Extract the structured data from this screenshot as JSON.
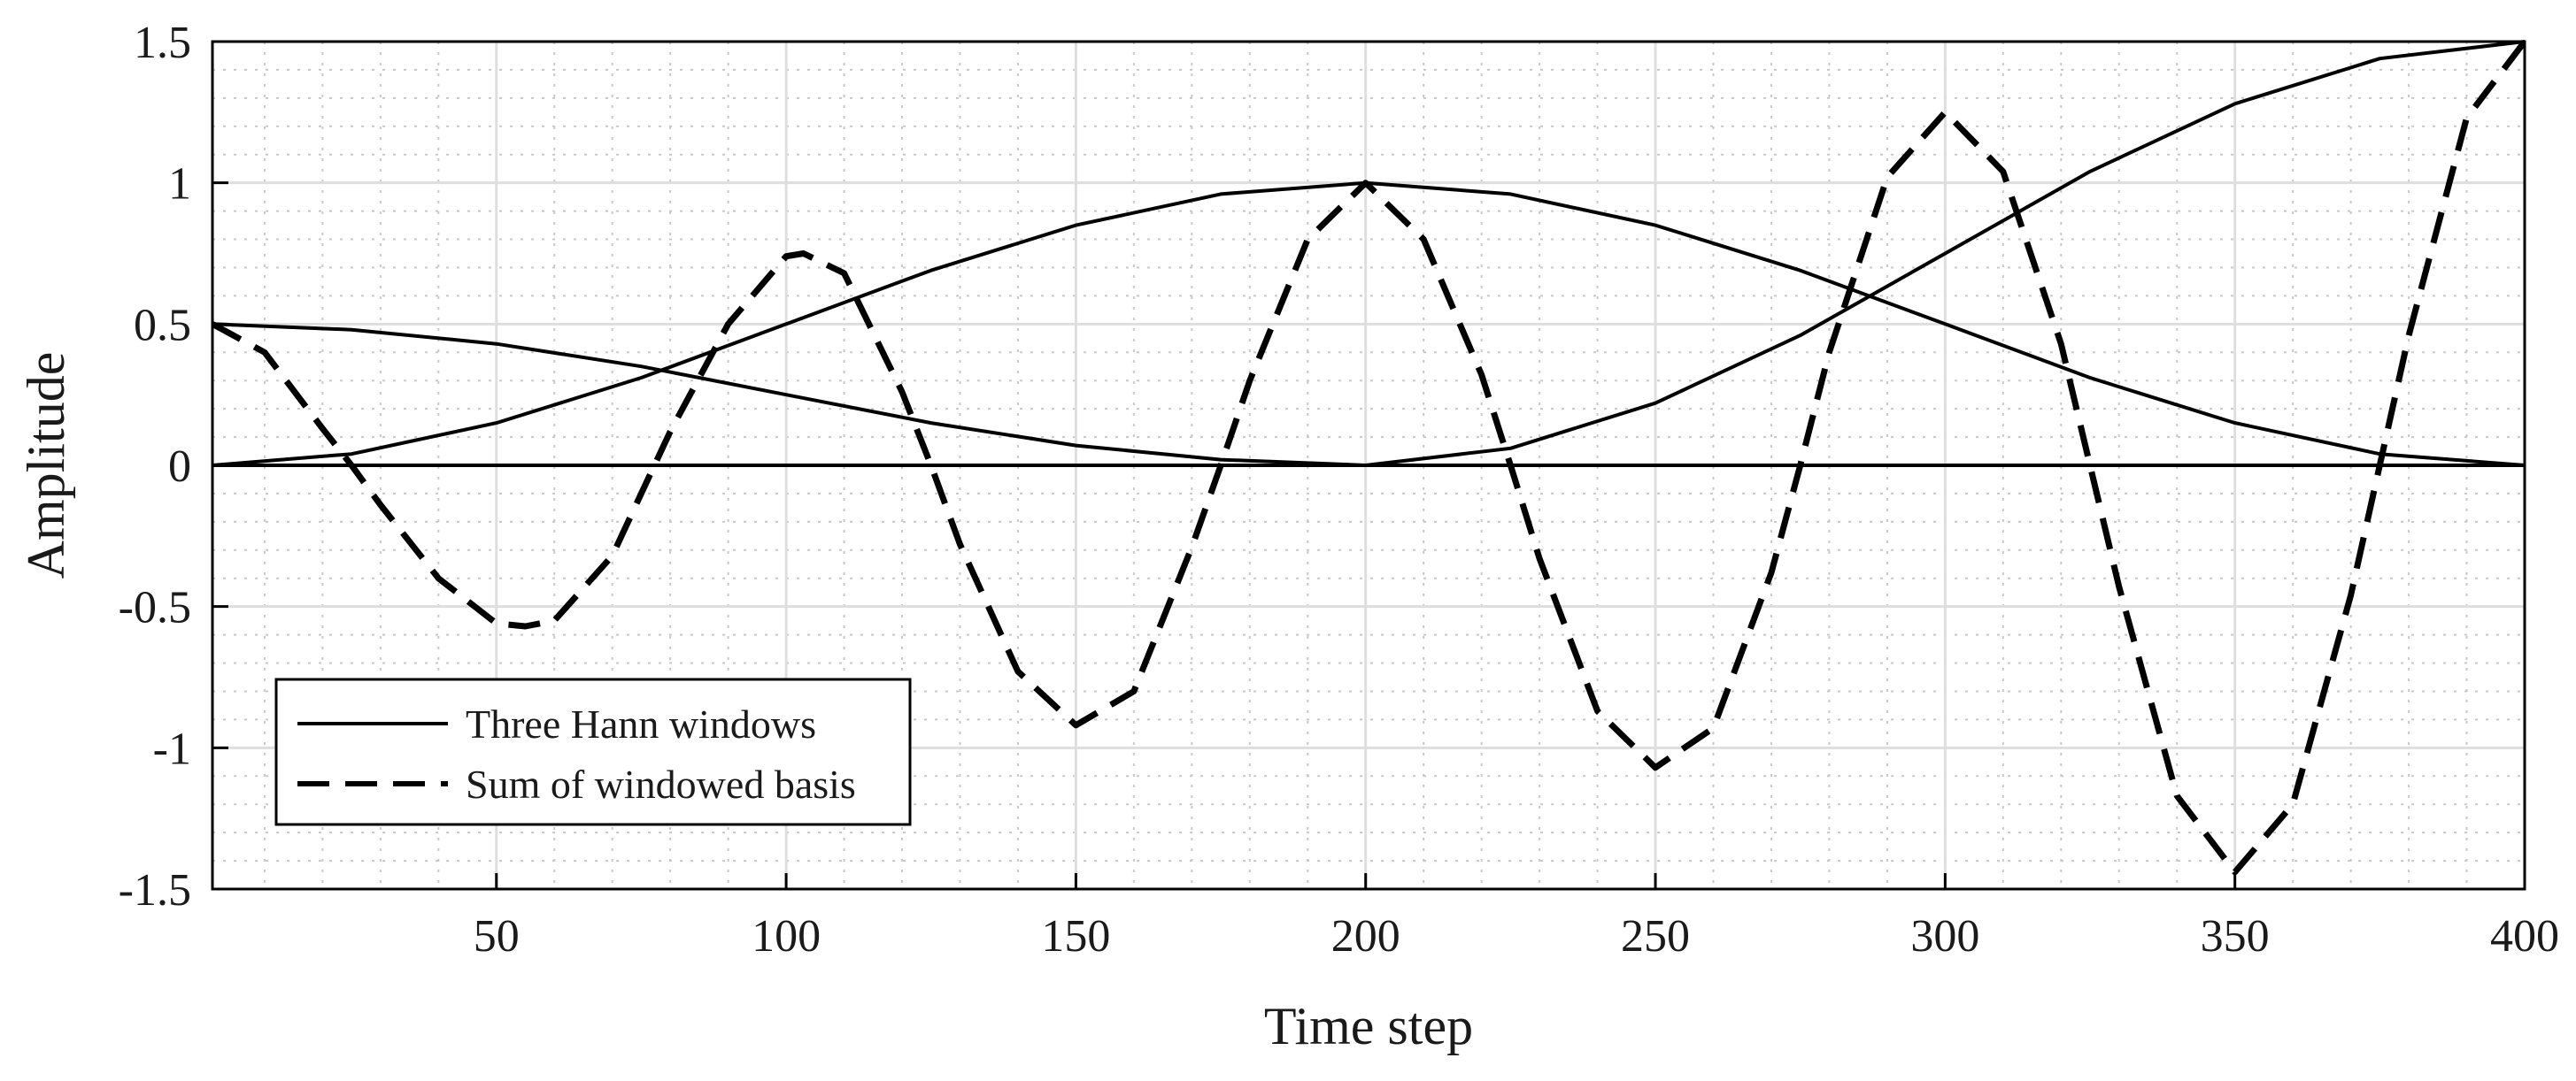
{
  "chart_data": {
    "type": "line",
    "title": "",
    "xlabel": "Time step",
    "ylabel": "Amplitude",
    "xlim": [
      1,
      400
    ],
    "ylim": [
      -1.5,
      1.5
    ],
    "grid": true,
    "minor_grid": true,
    "xticks": [
      50,
      100,
      150,
      200,
      250,
      300,
      350,
      400
    ],
    "yticks": [
      -1.5,
      -1,
      -0.5,
      0,
      0.5,
      1,
      1.5
    ],
    "xtick_labels": [
      "50",
      "100",
      "150",
      "200",
      "250",
      "300",
      "350",
      "400"
    ],
    "ytick_labels": [
      "-1.5",
      "-1",
      "-0.5",
      "0",
      "0.5",
      "1",
      "1.5"
    ],
    "legend_position": "bottom-left",
    "series": [
      {
        "name": "Three Hann windows",
        "style": "solid",
        "color": "#000000",
        "segments": [
          {
            "x": [
              1,
              25,
              50,
              75,
              100,
              125,
              150,
              175,
              200
            ],
            "y": [
              0.5,
              0.48,
              0.43,
              0.35,
              0.25,
              0.15,
              0.07,
              0.02,
              0
            ]
          },
          {
            "x": [
              1,
              25,
              50,
              75,
              100,
              125,
              150,
              175,
              200,
              225,
              250,
              275,
              300,
              325,
              350,
              375,
              400
            ],
            "y": [
              0,
              0.04,
              0.15,
              0.31,
              0.5,
              0.69,
              0.85,
              0.96,
              1,
              0.96,
              0.85,
              0.69,
              0.5,
              0.31,
              0.15,
              0.04,
              0
            ]
          },
          {
            "x": [
              200,
              225,
              250,
              275,
              300,
              325,
              350,
              375,
              400
            ],
            "y": [
              0,
              0.06,
              0.22,
              0.46,
              0.75,
              1.04,
              1.28,
              1.44,
              1.5
            ]
          },
          {
            "x": [
              1,
              400
            ],
            "y": [
              0,
              0
            ]
          }
        ]
      },
      {
        "name": "Sum of windowed basis",
        "style": "dashed",
        "color": "#000000",
        "x": [
          1,
          10,
          20,
          25,
          30,
          40,
          50,
          55,
          60,
          70,
          75,
          80,
          90,
          100,
          103,
          110,
          120,
          125,
          130,
          140,
          150,
          160,
          170,
          175,
          180,
          190,
          200,
          210,
          220,
          225,
          230,
          240,
          250,
          260,
          270,
          275,
          280,
          290,
          300,
          310,
          320,
          325,
          330,
          340,
          350,
          360,
          370,
          375,
          380,
          390,
          400
        ],
        "y": [
          0.5,
          0.4,
          0.13,
          0,
          -0.14,
          -0.4,
          -0.56,
          -0.57,
          -0.55,
          -0.32,
          -0.1,
          0.12,
          0.5,
          0.74,
          0.75,
          0.68,
          0.26,
          0,
          -0.28,
          -0.73,
          -0.92,
          -0.8,
          -0.29,
          0,
          0.3,
          0.8,
          1,
          0.8,
          0.32,
          0,
          -0.33,
          -0.87,
          -1.07,
          -0.93,
          -0.38,
          0,
          0.4,
          1.02,
          1.25,
          1.04,
          0.43,
          0,
          -0.43,
          -1.17,
          -1.44,
          -1.2,
          -0.46,
          0,
          0.46,
          1.23,
          1.5
        ]
      }
    ]
  }
}
